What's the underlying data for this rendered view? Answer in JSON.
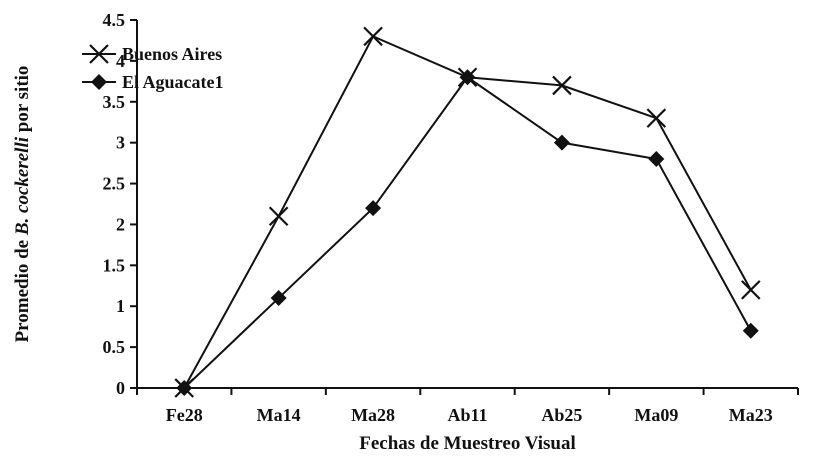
{
  "chart_data": {
    "type": "line",
    "title": "",
    "xlabel": "Fechas de Muestreo Visual",
    "ylabel": {
      "prefix": "Promedio de ",
      "italic": "B. cockerelli",
      "suffix": " por sitio"
    },
    "categories": [
      "Fe28",
      "Ma14",
      "Ma28",
      "Ab11",
      "Ab25",
      "Ma09",
      "Ma23"
    ],
    "ylim": [
      0,
      4.5
    ],
    "yticks": [
      "0",
      "0.5",
      "1",
      "1.5",
      "2",
      "2.5",
      "3",
      "3.5",
      "4",
      "4.5"
    ],
    "grid": false,
    "legend_position": "top-left",
    "series": [
      {
        "name": "Buenos Aires",
        "marker": "x",
        "color": "#111111",
        "values": [
          0,
          2.1,
          4.3,
          3.8,
          3.7,
          3.3,
          1.2
        ]
      },
      {
        "name": "El Aguacate1",
        "marker": "diamond",
        "color": "#111111",
        "values": [
          0,
          1.1,
          2.2,
          3.8,
          3.0,
          2.8,
          0.7
        ]
      }
    ]
  }
}
